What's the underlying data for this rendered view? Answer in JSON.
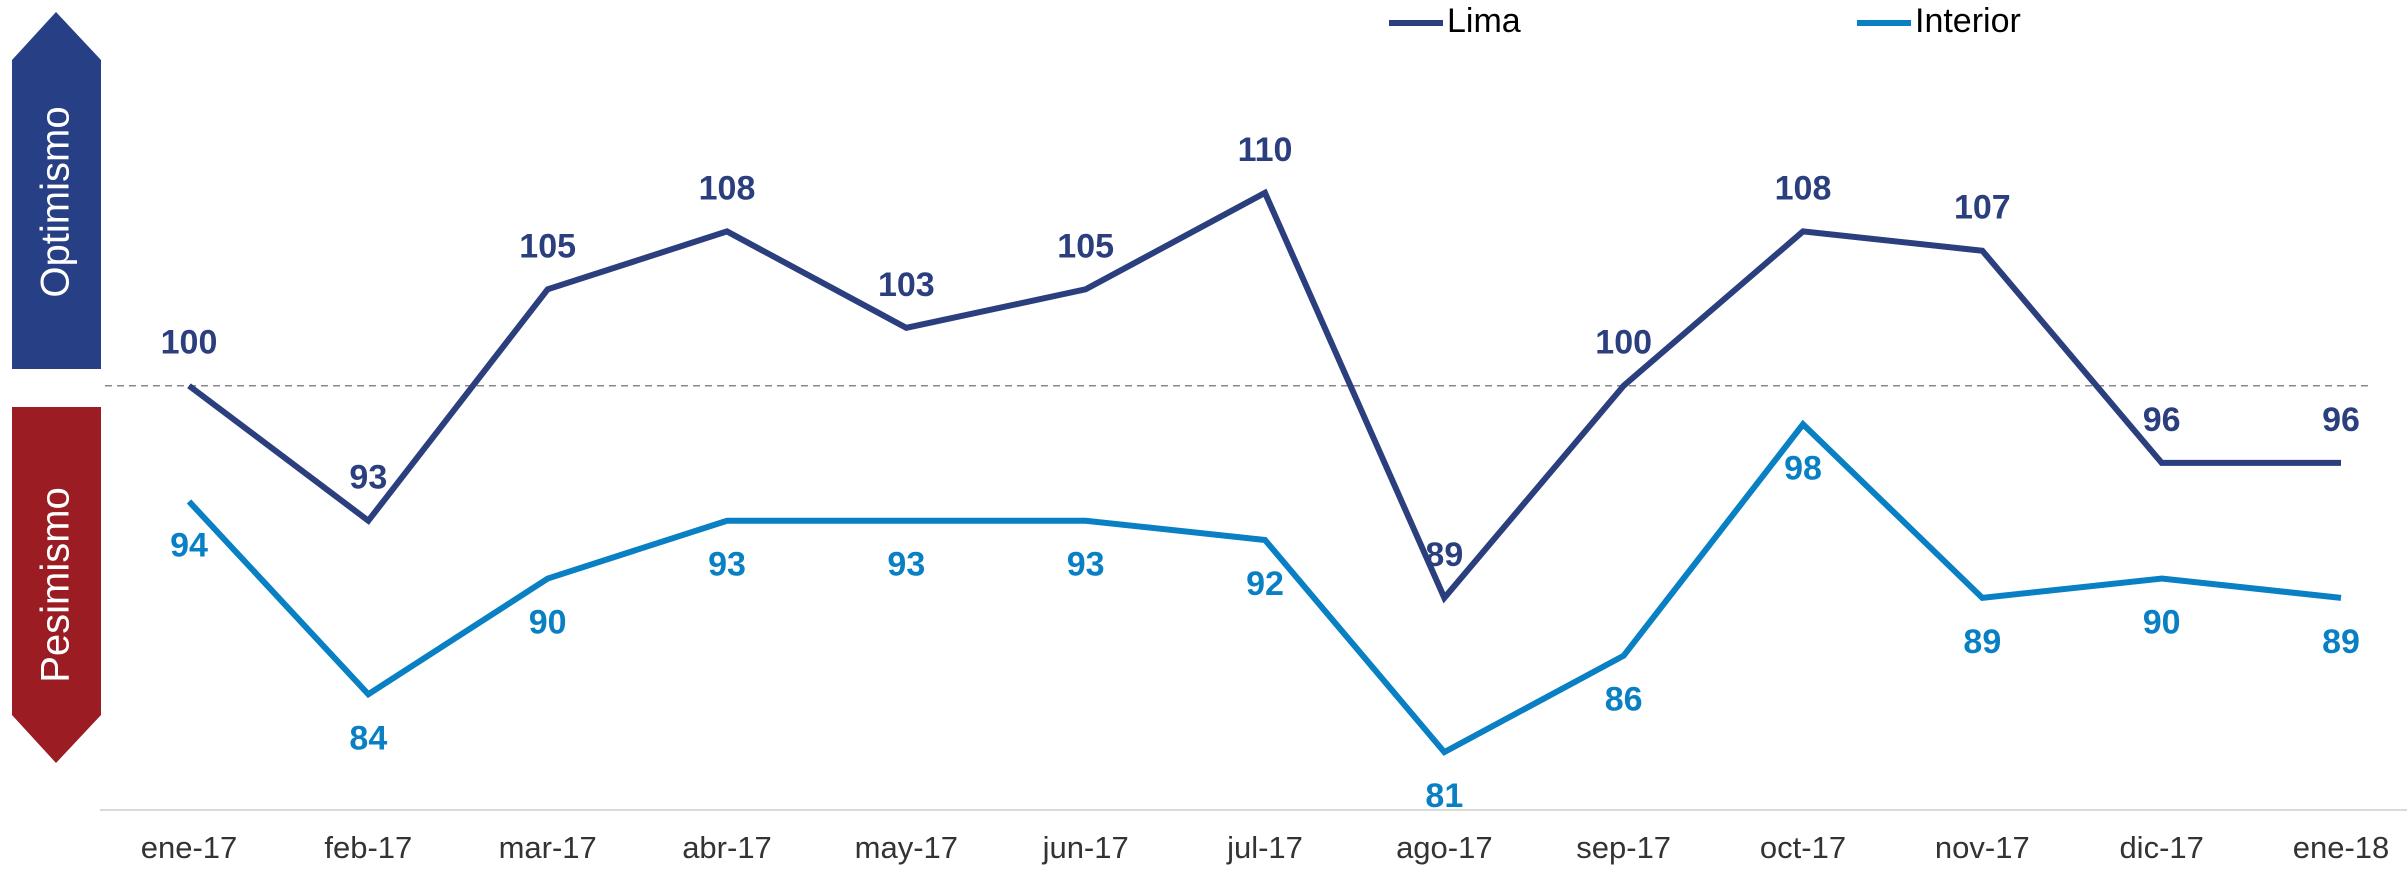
{
  "chart_data": {
    "type": "line",
    "categories": [
      "ene-17",
      "feb-17",
      "mar-17",
      "abr-17",
      "may-17",
      "jun-17",
      "jul-17",
      "ago-17",
      "sep-17",
      "oct-17",
      "nov-17",
      "dic-17",
      "ene-18"
    ],
    "series": [
      {
        "name": "Lima",
        "color": "#2b3f7e",
        "values": [
          100,
          93,
          105,
          108,
          103,
          105,
          110,
          89,
          100,
          108,
          107,
          96,
          96
        ]
      },
      {
        "name": "Interior",
        "color": "#0a80c4",
        "values": [
          94,
          84,
          90,
          93,
          93,
          93,
          92,
          81,
          86,
          98,
          89,
          90,
          89
        ]
      }
    ],
    "ylim": [
      78,
      120
    ],
    "reference_line": 100,
    "annotations": [
      "Optimismo",
      "Pesimismo"
    ],
    "annotation_colors": [
      "#263f85",
      "#9b1c23"
    ]
  }
}
